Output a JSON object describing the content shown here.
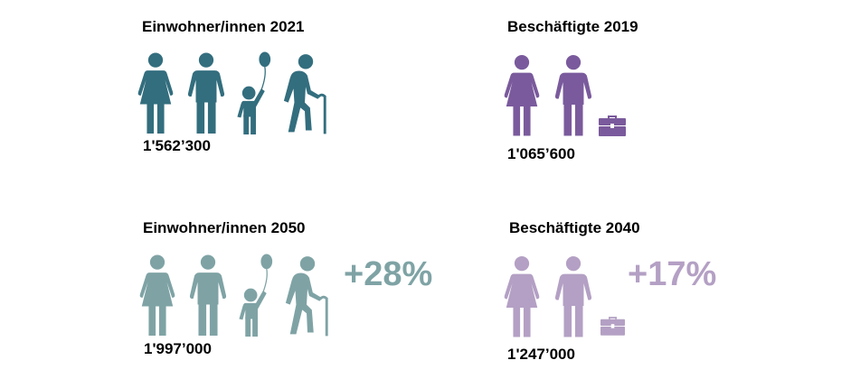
{
  "colors": {
    "pop_current": "#336e7e",
    "pop_future": "#7fa3a5",
    "emp_current": "#7a5a9c",
    "emp_future": "#b4a0c4"
  },
  "panels": [
    {
      "title": "Einwohner/innen 2021",
      "value": "1'562’300",
      "icons": [
        "woman-icon",
        "man-icon",
        "child-with-balloon-icon",
        "elderly-person-with-cane-icon"
      ]
    },
    {
      "title": "Beschäftigte 2019",
      "value": "1'065’600",
      "icons": [
        "woman-icon",
        "man-icon",
        "briefcase-icon"
      ]
    },
    {
      "title": "Einwohner/innen 2050",
      "value": "1'997’000",
      "change": "+28%",
      "icons": [
        "woman-icon",
        "man-icon",
        "child-with-balloon-icon",
        "elderly-person-with-cane-icon"
      ]
    },
    {
      "title": "Beschäftigte 2040",
      "value": "1'247’000",
      "change": "+17%",
      "icons": [
        "woman-icon",
        "man-icon",
        "briefcase-icon"
      ]
    }
  ]
}
